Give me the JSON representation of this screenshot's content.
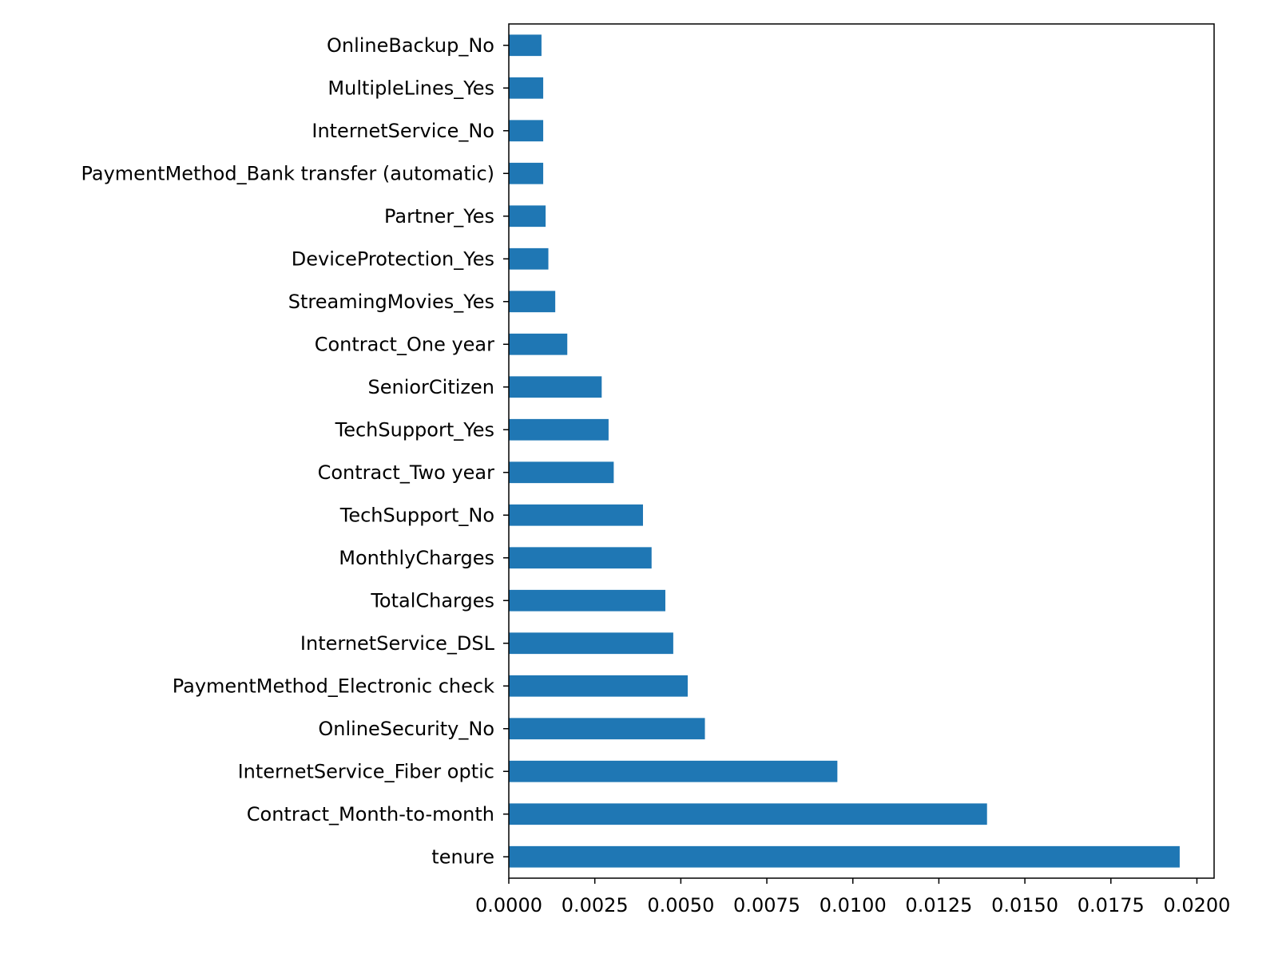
{
  "chart_data": {
    "type": "bar",
    "orientation": "horizontal",
    "title": "",
    "xlabel": "",
    "ylabel": "",
    "xlim": [
      0,
      0.0205
    ],
    "grid": false,
    "bar_color": "#1f77b4",
    "categories": [
      "tenure",
      "Contract_Month-to-month",
      "InternetService_Fiber optic",
      "OnlineSecurity_No",
      "PaymentMethod_Electronic check",
      "InternetService_DSL",
      "TotalCharges",
      "MonthlyCharges",
      "TechSupport_No",
      "Contract_Two year",
      "TechSupport_Yes",
      "SeniorCitizen",
      "Contract_One year",
      "StreamingMovies_Yes",
      "DeviceProtection_Yes",
      "Partner_Yes",
      "PaymentMethod_Bank transfer (automatic)",
      "InternetService_No",
      "MultipleLines_Yes",
      "OnlineBackup_No"
    ],
    "values": [
      0.0195,
      0.0139,
      0.00955,
      0.0057,
      0.0052,
      0.00478,
      0.00455,
      0.00415,
      0.0039,
      0.00305,
      0.0029,
      0.0027,
      0.0017,
      0.00135,
      0.00115,
      0.00107,
      0.001,
      0.001,
      0.001,
      0.00095
    ],
    "xticks": [
      0,
      0.0025,
      0.005,
      0.0075,
      0.01,
      0.0125,
      0.015,
      0.0175,
      0.02
    ],
    "xtick_labels": [
      "0.0000",
      "0.0025",
      "0.0050",
      "0.0075",
      "0.0100",
      "0.0125",
      "0.0150",
      "0.0175",
      "0.0200"
    ]
  }
}
